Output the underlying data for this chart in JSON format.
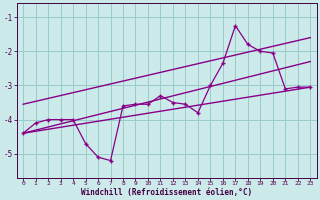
{
  "xlabel": "Windchill (Refroidissement éolien,°C)",
  "bg_color": "#cceaea",
  "line_color": "#880088",
  "grid_color": "#99cccc",
  "main_x": [
    0,
    1,
    2,
    3,
    4,
    5,
    6,
    7,
    8,
    9,
    10,
    11,
    12,
    13,
    14,
    15,
    16,
    17,
    18,
    19,
    20,
    21,
    22,
    23
  ],
  "main_y": [
    -4.4,
    -4.1,
    -4.0,
    -4.0,
    -4.0,
    -4.7,
    -5.1,
    -5.2,
    -3.6,
    -3.55,
    -3.55,
    -3.3,
    -3.5,
    -3.55,
    -3.8,
    -3.0,
    -2.35,
    -1.25,
    -1.8,
    -2.0,
    -2.05,
    -3.1,
    -3.05,
    -3.05
  ],
  "upper_line_x": [
    0,
    23
  ],
  "upper_line_y": [
    -3.55,
    -1.6
  ],
  "lower_line_x": [
    0,
    23
  ],
  "lower_line_y": [
    -4.4,
    -3.05
  ],
  "mid_line_x": [
    0,
    23
  ],
  "mid_line_y": [
    -4.4,
    -2.3
  ],
  "xlim": [
    -0.5,
    23.5
  ],
  "ylim": [
    -5.7,
    -0.6
  ],
  "yticks": [
    -5,
    -4,
    -3,
    -2,
    -1
  ],
  "xticks": [
    0,
    1,
    2,
    3,
    4,
    5,
    6,
    7,
    8,
    9,
    10,
    11,
    12,
    13,
    14,
    15,
    16,
    17,
    18,
    19,
    20,
    21,
    22,
    23
  ]
}
